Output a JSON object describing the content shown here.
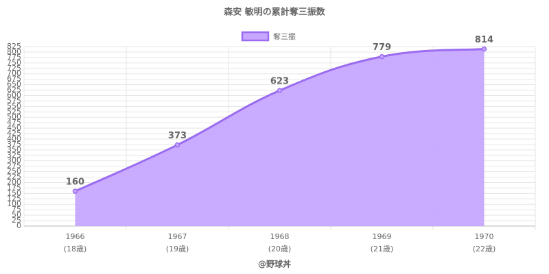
{
  "chart_data": {
    "type": "area",
    "title": "森安 敏明の累計奪三振数",
    "categories": [
      "1966",
      "1967",
      "1968",
      "1969",
      "1970"
    ],
    "sublabels": [
      "(18歳)",
      "(19歳)",
      "(20歳)",
      "(21歳)",
      "(22歳)"
    ],
    "series": [
      {
        "name": "奪三振",
        "color": "#9b6cf0",
        "fill": "#c6a6ff",
        "values": [
          160,
          373,
          623,
          779,
          814
        ]
      }
    ],
    "ylim": [
      0,
      825
    ],
    "yticks": [
      0,
      25,
      50,
      75,
      100,
      125,
      150,
      175,
      200,
      225,
      250,
      275,
      300,
      325,
      350,
      375,
      400,
      425,
      450,
      475,
      500,
      525,
      550,
      575,
      600,
      625,
      650,
      675,
      700,
      725,
      750,
      775,
      800,
      825
    ],
    "grid": true,
    "legend": "top",
    "footer": "@野球丼"
  }
}
